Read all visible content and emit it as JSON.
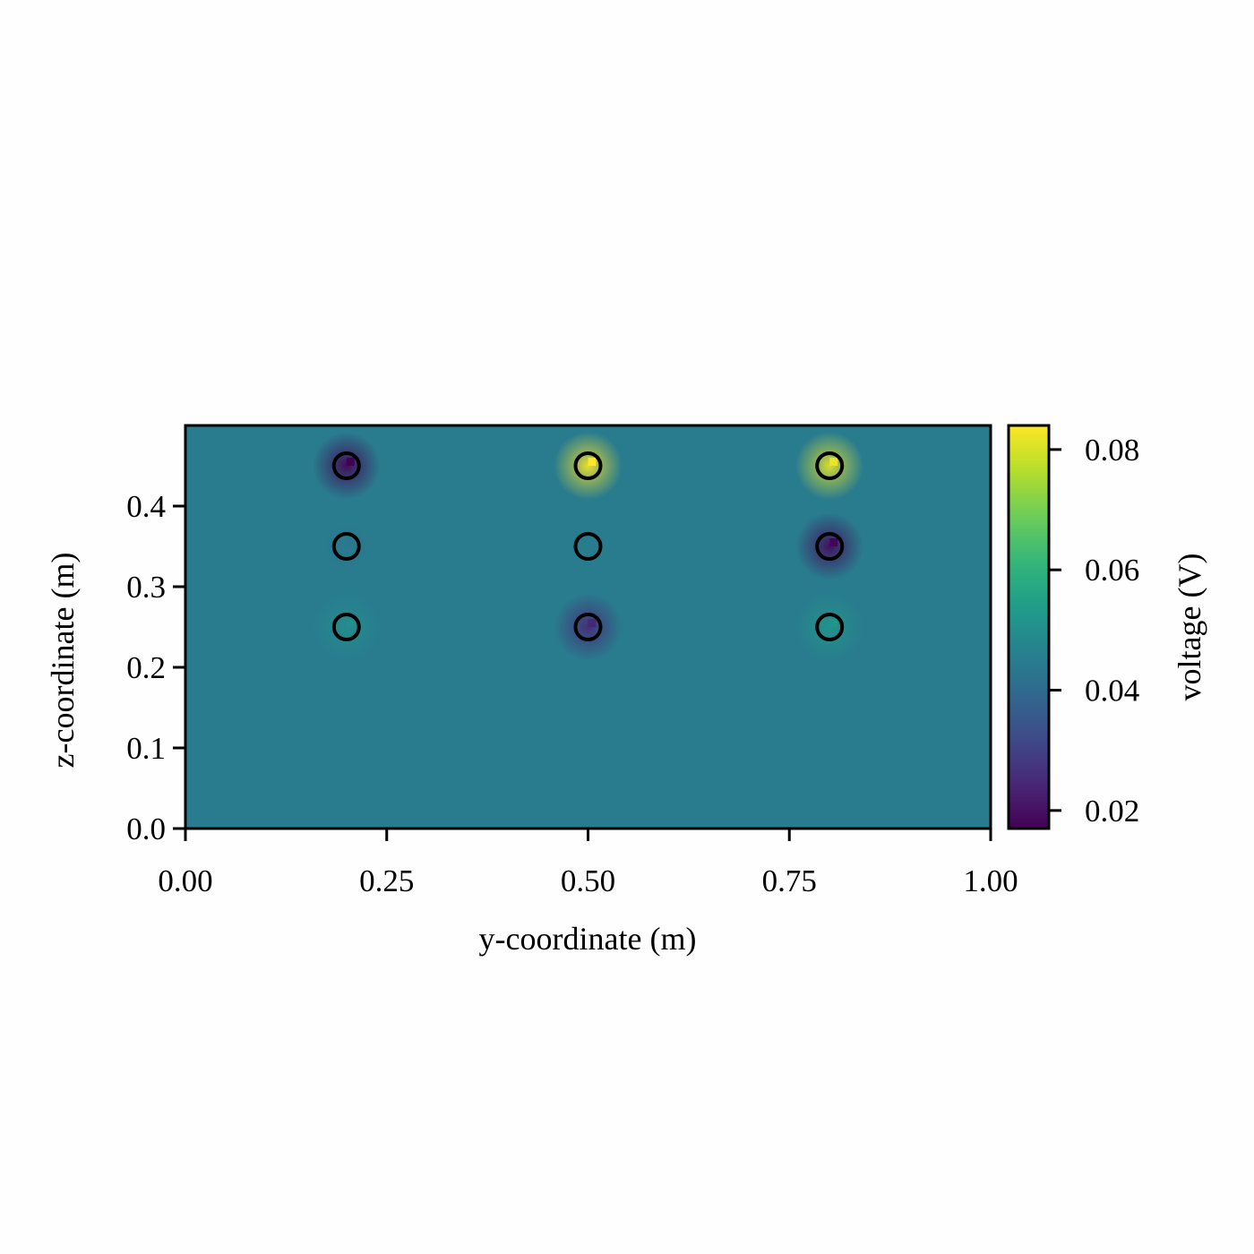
{
  "chart_data": {
    "type": "heatmap",
    "title": "",
    "xlabel": "y-coordinate (m)",
    "ylabel": "z-coordinate (m)",
    "xlim": [
      0.0,
      1.0
    ],
    "ylim": [
      0.0,
      0.5
    ],
    "x_ticks": [
      "0.00",
      "0.25",
      "0.50",
      "0.75",
      "1.00"
    ],
    "x_tick_values": [
      0.0,
      0.25,
      0.5,
      0.75,
      1.0
    ],
    "y_ticks": [
      "0.0",
      "0.1",
      "0.2",
      "0.3",
      "0.4"
    ],
    "y_tick_values": [
      0.0,
      0.1,
      0.2,
      0.3,
      0.4
    ],
    "background_value": 0.045,
    "colorbar": {
      "label": "voltage (V)",
      "colormap": "viridis",
      "range": [
        0.017,
        0.084
      ],
      "ticks": [
        "0.02",
        "0.04",
        "0.06",
        "0.08"
      ],
      "tick_values": [
        0.02,
        0.04,
        0.06,
        0.08
      ]
    },
    "electrodes": [
      {
        "y": 0.2,
        "z": 0.45,
        "value": 0.017
      },
      {
        "y": 0.5,
        "z": 0.45,
        "value": 0.084
      },
      {
        "y": 0.8,
        "z": 0.45,
        "value": 0.082
      },
      {
        "y": 0.2,
        "z": 0.35,
        "value": 0.044
      },
      {
        "y": 0.5,
        "z": 0.35,
        "value": 0.045
      },
      {
        "y": 0.8,
        "z": 0.35,
        "value": 0.018
      },
      {
        "y": 0.2,
        "z": 0.25,
        "value": 0.05
      },
      {
        "y": 0.5,
        "z": 0.25,
        "value": 0.024
      },
      {
        "y": 0.8,
        "z": 0.25,
        "value": 0.052
      }
    ],
    "grid": false,
    "marker": "open-circle"
  }
}
